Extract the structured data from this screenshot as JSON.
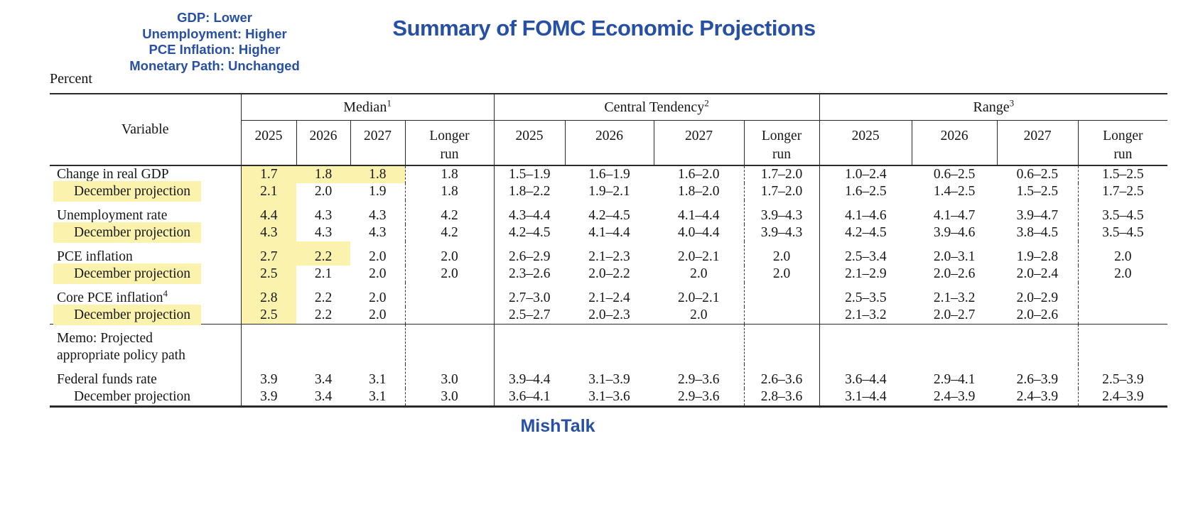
{
  "annotation": {
    "lines": [
      "GDP: Lower",
      "Unemployment: Higher",
      "PCE Inflation: Higher",
      "Monetary Path: Unchanged"
    ]
  },
  "title": "Summary of FOMC Economic Projections",
  "unit_label": "Percent",
  "footer": "MishTalk",
  "colors": {
    "accent_blue": "#2750a5",
    "highlight_yellow": "#fbf3ad",
    "rule_color": "#2a2a2a"
  },
  "table": {
    "variable_header": "Variable",
    "groups": [
      {
        "label": "Median",
        "sup": "1"
      },
      {
        "label": "Central Tendency",
        "sup": "2"
      },
      {
        "label": "Range",
        "sup": "3"
      }
    ],
    "year_headers": [
      "2025",
      "2026",
      "2027",
      "Longer run"
    ],
    "rows": [
      {
        "label": "Change in real GDP",
        "cells": [
          "1.7",
          "1.8",
          "1.8",
          "1.8",
          "1.5–1.9",
          "1.6–1.9",
          "1.6–2.0",
          "1.7–2.0",
          "1.0–2.4",
          "0.6–2.5",
          "0.6–2.5",
          "1.5–2.5"
        ],
        "highlight_cells": [
          0,
          1,
          2
        ]
      },
      {
        "label": "December projection",
        "indent": true,
        "label_highlight": true,
        "cells": [
          "2.1",
          "2.0",
          "1.9",
          "1.8",
          "1.8–2.2",
          "1.9–2.1",
          "1.8–2.0",
          "1.7–2.0",
          "1.6–2.5",
          "1.4–2.5",
          "1.5–2.5",
          "1.7–2.5"
        ],
        "highlight_cells": [
          0
        ]
      },
      {
        "label": "Unemployment rate",
        "group_start": true,
        "cells": [
          "4.4",
          "4.3",
          "4.3",
          "4.2",
          "4.3–4.4",
          "4.2–4.5",
          "4.1–4.4",
          "3.9–4.3",
          "4.1–4.6",
          "4.1–4.7",
          "3.9–4.7",
          "3.5–4.5"
        ],
        "highlight_cells": [
          0
        ]
      },
      {
        "label": "December projection",
        "indent": true,
        "label_highlight": true,
        "cells": [
          "4.3",
          "4.3",
          "4.3",
          "4.2",
          "4.2–4.5",
          "4.1–4.4",
          "4.0–4.4",
          "3.9–4.3",
          "4.2–4.5",
          "3.9–4.6",
          "3.8–4.5",
          "3.5–4.5"
        ],
        "highlight_cells": [
          0
        ]
      },
      {
        "label": "PCE inflation",
        "group_start": true,
        "cells": [
          "2.7",
          "2.2",
          "2.0",
          "2.0",
          "2.6–2.9",
          "2.1–2.3",
          "2.0–2.1",
          "2.0",
          "2.5–3.4",
          "2.0–3.1",
          "1.9–2.8",
          "2.0"
        ],
        "highlight_cells": [
          0,
          1
        ]
      },
      {
        "label": "December projection",
        "indent": true,
        "label_highlight": true,
        "cells": [
          "2.5",
          "2.1",
          "2.0",
          "2.0",
          "2.3–2.6",
          "2.0–2.2",
          "2.0",
          "2.0",
          "2.1–2.9",
          "2.0–2.6",
          "2.0–2.4",
          "2.0"
        ],
        "highlight_cells": [
          0
        ]
      },
      {
        "label": "Core PCE inflation",
        "sup": "4",
        "group_start": true,
        "cells": [
          "2.8",
          "2.2",
          "2.0",
          "",
          "2.7–3.0",
          "2.1–2.4",
          "2.0–2.1",
          "",
          "2.5–3.5",
          "2.1–3.2",
          "2.0–2.9",
          ""
        ],
        "highlight_cells": [
          0
        ]
      },
      {
        "label": "December projection",
        "indent": true,
        "label_highlight": true,
        "cells": [
          "2.5",
          "2.2",
          "2.0",
          "",
          "2.5–2.7",
          "2.0–2.3",
          "2.0",
          "",
          "2.1–3.2",
          "2.0–2.7",
          "2.0–2.6",
          ""
        ],
        "highlight_cells": [
          0
        ]
      },
      {
        "label_lines": [
          "Memo: Projected",
          "appropriate policy path"
        ],
        "section_start": true,
        "memo": true,
        "cells": [
          "",
          "",
          "",
          "",
          "",
          "",
          "",
          "",
          "",
          "",
          "",
          ""
        ]
      },
      {
        "label": "Federal funds rate",
        "group_start": true,
        "cells": [
          "3.9",
          "3.4",
          "3.1",
          "3.0",
          "3.9–4.4",
          "3.1–3.9",
          "2.9–3.6",
          "2.6–3.6",
          "3.6–4.4",
          "2.9–4.1",
          "2.6–3.9",
          "2.5–3.9"
        ]
      },
      {
        "label": "December projection",
        "indent": true,
        "cells": [
          "3.9",
          "3.4",
          "3.1",
          "3.0",
          "3.6–4.1",
          "3.1–3.6",
          "2.9–3.6",
          "2.8–3.6",
          "3.1–4.4",
          "2.4–3.9",
          "2.4–3.9",
          "2.4–3.9"
        ]
      }
    ]
  }
}
